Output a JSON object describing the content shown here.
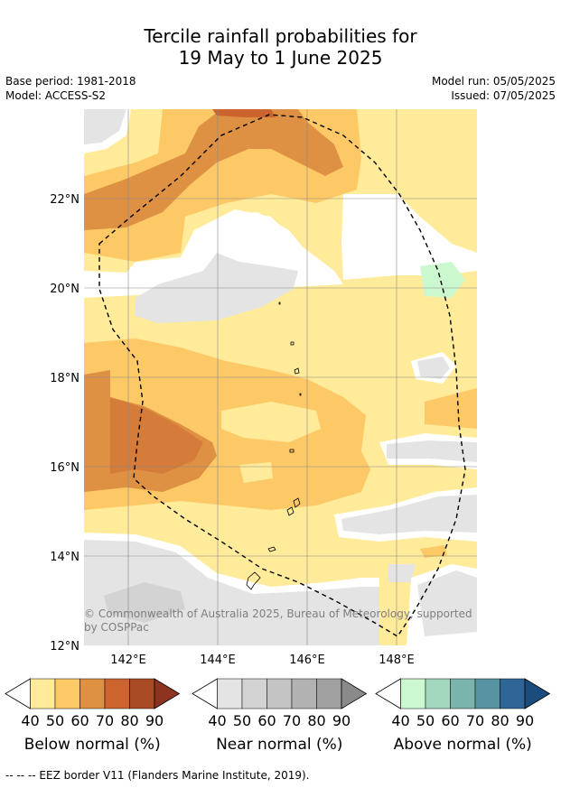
{
  "title_line1": "Tercile rainfall probabilities for",
  "title_line2": "19 May to 1 June 2025",
  "base_period": "Base period: 1981-2018",
  "model": "Model: ACCESS-S2",
  "model_run": "Model run: 05/05/2025",
  "issued": "Issued: 07/05/2025",
  "copyright_line1": "© Commonwealth of Australia 2025, Bureau of Meteorology, supported",
  "copyright_line2": "by COSPPac",
  "lat_ticks": [
    "22°N",
    "20°N",
    "18°N",
    "16°N",
    "14°N",
    "12°N"
  ],
  "lon_ticks": [
    "142°E",
    "144°E",
    "146°E",
    "148°E"
  ],
  "colorbars": [
    {
      "title": "Below normal (%)",
      "labels": [
        "40",
        "50",
        "60",
        "70",
        "80",
        "90"
      ],
      "colors": [
        "#ffffff",
        "#ffeb99",
        "#fdc967",
        "#de9142",
        "#cc6430",
        "#a94b25",
        "#8e3320"
      ]
    },
    {
      "title": "Near normal (%)",
      "labels": [
        "40",
        "50",
        "60",
        "70",
        "80",
        "90"
      ],
      "colors": [
        "#ffffff",
        "#e4e4e4",
        "#d3d3d3",
        "#c4c4c4",
        "#b2b2b2",
        "#a0a0a0",
        "#8a8a8a"
      ]
    },
    {
      "title": "Above normal (%)",
      "labels": [
        "40",
        "50",
        "60",
        "70",
        "80",
        "90"
      ],
      "colors": [
        "#ffffff",
        "#ccf8cf",
        "#a4d8bd",
        "#7bb4ac",
        "#5893a1",
        "#2f6597",
        "#1a4c7e"
      ]
    }
  ],
  "footer": "--  --  -- EEZ border V11 (Flanders Marine Institute, 2019)."
}
